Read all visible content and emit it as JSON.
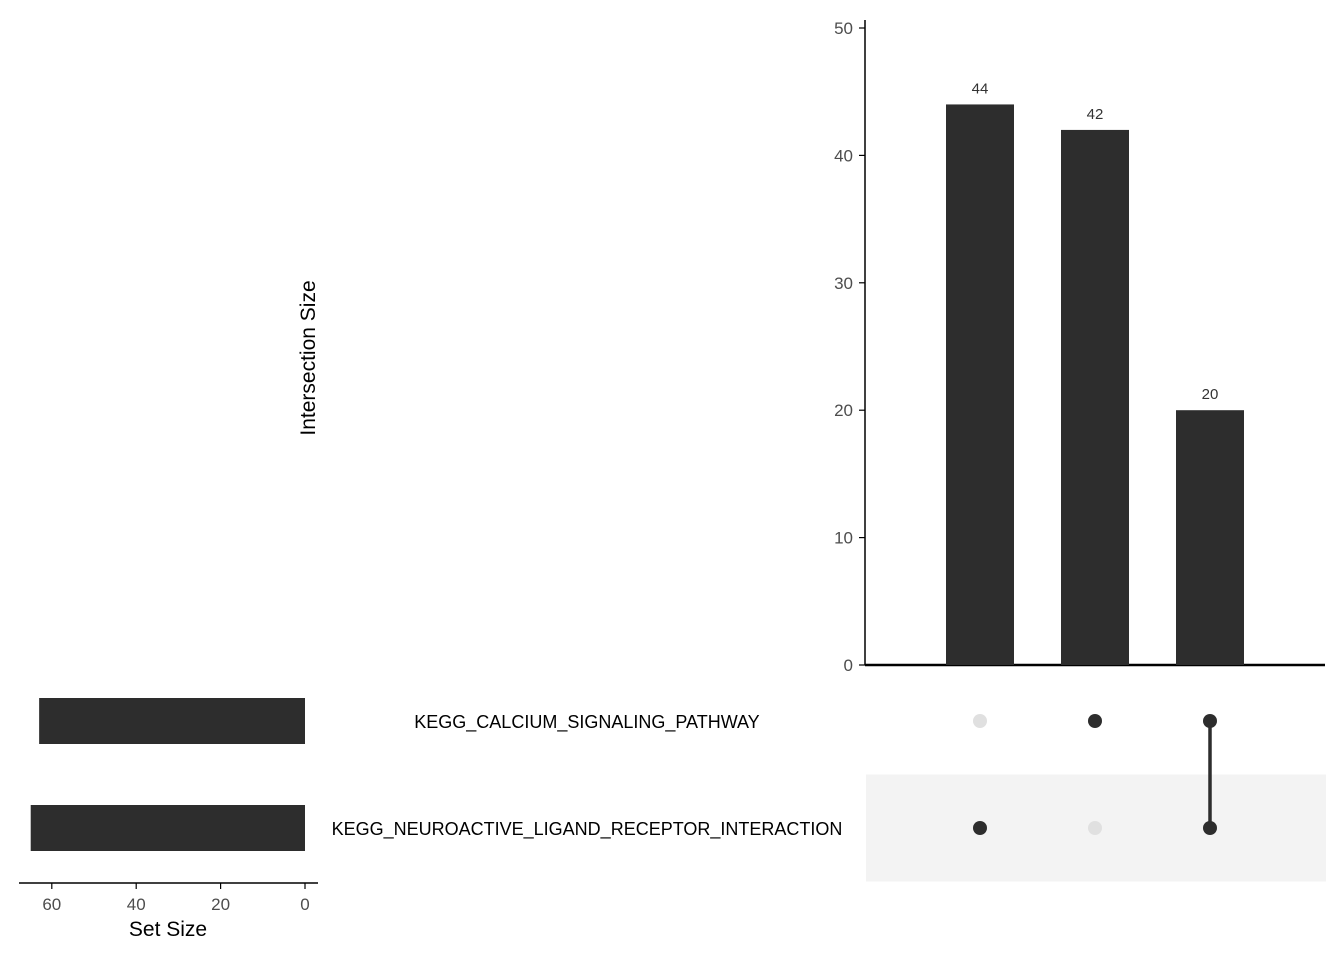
{
  "chart_data": {
    "type": "bar",
    "subtype": "upset",
    "ylabel": "Intersection Size",
    "set_size_xlabel": "Set Size",
    "ylim": [
      0,
      50
    ],
    "yticks": [
      0,
      10,
      20,
      30,
      40,
      50
    ],
    "set_size_ticks": [
      60,
      40,
      20,
      0
    ],
    "set_size_lim": [
      0,
      70
    ],
    "sets": [
      {
        "name": "KEGG_CALCIUM_SIGNALING_PATHWAY",
        "size": 63
      },
      {
        "name": "KEGG_NEUROACTIVE_LIGAND_RECEPTOR_INTERACTION",
        "size": 65
      }
    ],
    "intersections": [
      {
        "label": "44",
        "value": 44,
        "members": [
          "KEGG_NEUROACTIVE_LIGAND_RECEPTOR_INTERACTION"
        ]
      },
      {
        "label": "42",
        "value": 42,
        "members": [
          "KEGG_CALCIUM_SIGNALING_PATHWAY"
        ]
      },
      {
        "label": "20",
        "value": 20,
        "members": [
          "KEGG_CALCIUM_SIGNALING_PATHWAY",
          "KEGG_NEUROACTIVE_LIGAND_RECEPTOR_INTERACTION"
        ]
      }
    ],
    "grid": false,
    "colors": {
      "bar": "#2d2d2d",
      "dot_active": "#2d2d2d",
      "dot_inactive": "#e0e0e0",
      "stripe": "#f3f3f3",
      "axis": "#000000"
    }
  }
}
